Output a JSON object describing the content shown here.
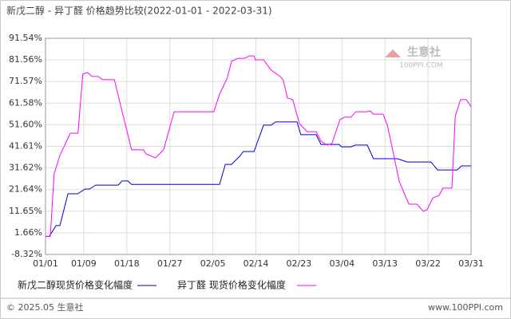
{
  "chart_data": {
    "type": "line",
    "title": "新戊二醇 - 异丁醛  价格趋势比较(2022-01-01 - 2022-03-31)",
    "xlim": [
      0,
      89
    ],
    "xticks": [
      {
        "value": 0,
        "label": "01/01"
      },
      {
        "value": 8,
        "label": "01/09"
      },
      {
        "value": 17,
        "label": "01/18"
      },
      {
        "value": 26,
        "label": "01/27"
      },
      {
        "value": 35,
        "label": "02/05"
      },
      {
        "value": 44,
        "label": "02/14"
      },
      {
        "value": 53,
        "label": "02/23"
      },
      {
        "value": 62,
        "label": "03/04"
      },
      {
        "value": 71,
        "label": "03/13"
      },
      {
        "value": 80,
        "label": "03/22"
      },
      {
        "value": 89,
        "label": "03/31"
      }
    ],
    "ylim": [
      -8.32,
      91.54
    ],
    "yticks": [
      {
        "value": -8.32,
        "label": "-8.32%"
      },
      {
        "value": 1.66,
        "label": "1.66%"
      },
      {
        "value": 11.65,
        "label": "11.65%"
      },
      {
        "value": 21.64,
        "label": "21.64%"
      },
      {
        "value": 31.62,
        "label": "31.62%"
      },
      {
        "value": 41.61,
        "label": "41.61%"
      },
      {
        "value": 51.6,
        "label": "51.60%"
      },
      {
        "value": 61.58,
        "label": "61.58%"
      },
      {
        "value": 71.57,
        "label": "71.57%"
      },
      {
        "value": 81.56,
        "label": "81.56%"
      },
      {
        "value": 91.54,
        "label": "91.54%"
      }
    ],
    "grid": true,
    "series": [
      {
        "name": "新戊二醇现货价格变化幅度",
        "color": "#0000cc",
        "x": [
          0,
          0.8,
          2.2,
          3,
          4.7,
          6.7,
          8.3,
          9.2,
          10.5,
          15.2,
          16,
          17.2,
          18,
          36.4,
          37.6,
          38.9,
          40.6,
          41.4,
          43.6,
          45.6,
          47.2,
          48.1,
          52.6,
          53.4,
          56.6,
          57.6,
          61.4,
          61.9,
          63.9,
          64.8,
          67.3,
          68.6,
          73.6,
          75.6,
          80.6,
          82,
          86.1,
          87,
          89
        ],
        "values": [
          0,
          0,
          5,
          5,
          19.7,
          19.7,
          21.9,
          21.9,
          23.7,
          23.7,
          25.6,
          25.6,
          24,
          24,
          33.3,
          33.3,
          37,
          39.2,
          39.2,
          51.4,
          51.4,
          52.9,
          52.9,
          47,
          47,
          42.5,
          42.5,
          41.4,
          41.4,
          42.2,
          42.2,
          35.9,
          35.9,
          34.4,
          34.4,
          30.7,
          30.7,
          32.6,
          32.6
        ]
      },
      {
        "name": "异丁醛 现货价格变化幅度",
        "color": "#ff00ff",
        "x": [
          0,
          1,
          1.8,
          3,
          5.2,
          6.8,
          7.8,
          8.8,
          9.7,
          11,
          11.9,
          14.4,
          18,
          20.5,
          21,
          23,
          24.7,
          26.9,
          35.2,
          36.4,
          38,
          38.9,
          40.2,
          41.7,
          42.6,
          43.6,
          43.9,
          45.6,
          47.2,
          48.9,
          49.7,
          50.6,
          51.7,
          53.1,
          54.7,
          56.6,
          57.6,
          58.9,
          59.9,
          61.6,
          62.6,
          63.9,
          64.9,
          67.3,
          67.9,
          68.6,
          70.6,
          71.5,
          74,
          76,
          77.7,
          79,
          79.8,
          81,
          82.3,
          83.1,
          85,
          85.7,
          86.8,
          88,
          89
        ],
        "values": [
          0,
          0,
          28.9,
          37.4,
          47.7,
          47.7,
          75,
          75.7,
          73.9,
          73.9,
          72.4,
          72.4,
          40,
          40,
          38.1,
          36.3,
          40,
          57.6,
          57.6,
          65.7,
          73.1,
          80.9,
          82.3,
          82.3,
          83.4,
          83.4,
          81.6,
          81.6,
          76.8,
          74.2,
          72.4,
          63.9,
          63.2,
          52.1,
          48.4,
          48.4,
          44,
          42.2,
          42.9,
          54,
          55.1,
          55.1,
          57.6,
          57.6,
          58,
          56.5,
          56.5,
          51.4,
          25.2,
          14.9,
          14.9,
          11.6,
          12.3,
          17.8,
          18.9,
          22.3,
          22.3,
          55.5,
          63.2,
          63.2,
          59.9
        ]
      }
    ],
    "watermark": "生意社",
    "watermark_url": "100PPI.COM",
    "footer_left": "© 2025.05 生意社",
    "footer_right": "www.100PPI.com"
  }
}
